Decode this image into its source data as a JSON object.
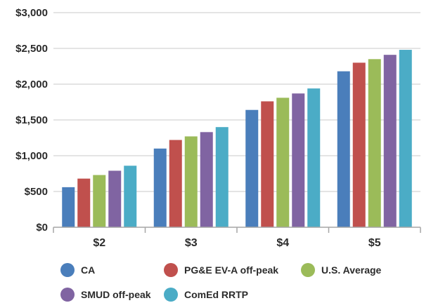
{
  "chart_data": {
    "type": "bar",
    "title": "",
    "xlabel": "",
    "ylabel": "",
    "categories": [
      "$2",
      "$3",
      "$4",
      "$5"
    ],
    "ylim": [
      0,
      3000
    ],
    "yticks": [
      0,
      500,
      1000,
      1500,
      2000,
      2500,
      3000
    ],
    "ytick_labels": [
      "$0",
      "$500",
      "$1,000",
      "$1,500",
      "$2,000",
      "$2,500",
      "$3,000"
    ],
    "grid": true,
    "legend_position": "bottom",
    "series": [
      {
        "name": "CA",
        "color": "#4a7ebb",
        "values": [
          560,
          1100,
          1640,
          2180
        ]
      },
      {
        "name": "PG&E EV-A off-peak",
        "color": "#c0504d",
        "values": [
          680,
          1220,
          1760,
          2300
        ]
      },
      {
        "name": "U.S. Average",
        "color": "#9bbb59",
        "values": [
          730,
          1270,
          1810,
          2350
        ]
      },
      {
        "name": "SMUD off-peak",
        "color": "#8064a2",
        "values": [
          790,
          1330,
          1870,
          2410
        ]
      },
      {
        "name": "ComEd RRTP",
        "color": "#4bacc6",
        "values": [
          860,
          1400,
          1940,
          2480
        ]
      }
    ]
  }
}
